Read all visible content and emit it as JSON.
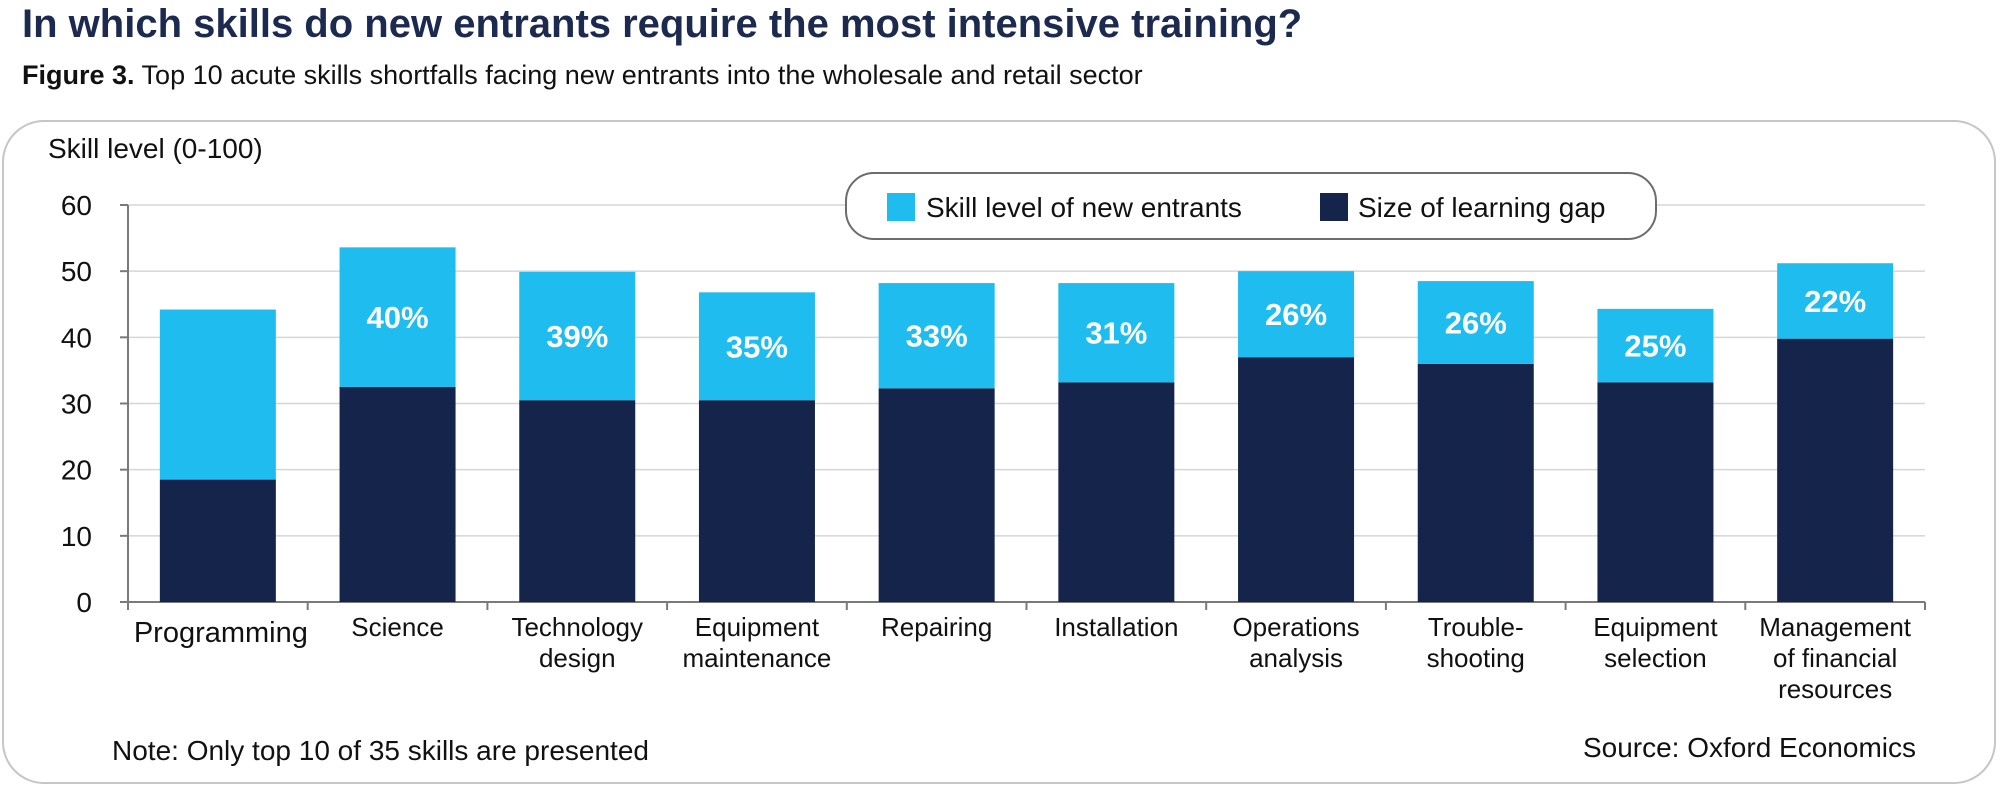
{
  "header": {
    "title": "In which skills do new entrants require the most intensive training?",
    "figure_label": "Figure 3.",
    "subtitle": "Top 10 acute skills shortfalls facing new entrants into the wholesale and retail sector"
  },
  "footer": {
    "note": "Note: Only top 10 of 35 skills are presented",
    "source": "Source: Oxford Economics"
  },
  "colors": {
    "skill_level": "#1fbcef",
    "learning_gap": "#15244a",
    "label_text": "#ffffff",
    "gridline": "#d6d6d6",
    "axis": "#7a7a7a"
  },
  "chart_data": {
    "type": "bar",
    "stacked": true,
    "ylabel": "Skill level (0-100)",
    "ylim": [
      0,
      60
    ],
    "yticks": [
      0,
      10,
      20,
      30,
      40,
      50,
      60
    ],
    "grid": true,
    "legend_position": "top-right",
    "categories": [
      [
        "Programming"
      ],
      [
        "Science"
      ],
      [
        "Technology",
        "design"
      ],
      [
        "Equipment",
        "maintenance"
      ],
      [
        "Repairing"
      ],
      [
        "Installation"
      ],
      [
        "Operations",
        "analysis"
      ],
      [
        "Trouble-",
        "shooting"
      ],
      [
        "Equipment",
        "selection"
      ],
      [
        "Management",
        "of financial",
        "resources"
      ]
    ],
    "series": [
      {
        "name": "Size of learning gap",
        "values": [
          18.5,
          32.5,
          30.5,
          30.5,
          32.3,
          33.2,
          37.0,
          36.0,
          33.2,
          39.8
        ]
      },
      {
        "name": "Skill level of new entrants",
        "values": [
          25.7,
          21.1,
          19.4,
          16.3,
          15.9,
          15.0,
          13.0,
          12.5,
          11.1,
          11.4
        ]
      }
    ],
    "data_labels": [
      "",
      "40%",
      "39%",
      "35%",
      "33%",
      "31%",
      "26%",
      "26%",
      "25%",
      "22%"
    ]
  }
}
